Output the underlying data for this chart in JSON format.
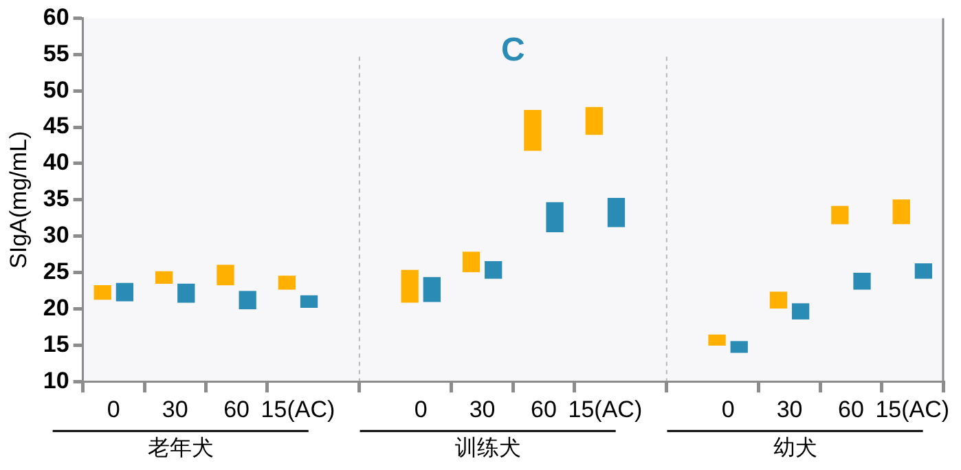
{
  "chart_data": {
    "type": "bar",
    "title": "C",
    "ylabel": "SIgA(mg/mL)",
    "categories": [
      "0",
      "30",
      "60",
      "15(AC)",
      "0",
      "30",
      "60",
      "15(AC)",
      "0",
      "30",
      "60",
      "15(AC)"
    ],
    "annotations": [
      "老年犬",
      "训练犬",
      "幼犬"
    ],
    "series": [
      {
        "color": "#ffb000",
        "base": [
          21.3,
          23.5,
          23.3,
          22.7,
          20.9,
          25.1,
          41.8,
          44.0,
          15.0,
          20.1,
          31.7,
          31.7
        ],
        "values": [
          1.9,
          1.6,
          2.7,
          1.8,
          4.4,
          2.7,
          5.5,
          3.7,
          1.4,
          2.2,
          2.4,
          3.3
        ]
      },
      {
        "color": "#2a8bb5",
        "base": [
          21.1,
          20.9,
          20.0,
          20.2,
          21.0,
          24.2,
          30.6,
          31.3,
          14.0,
          18.6,
          22.7,
          24.2
        ],
        "values": [
          2.4,
          2.5,
          2.4,
          1.6,
          3.3,
          2.3,
          4.0,
          3.9,
          1.5,
          2.1,
          2.2,
          2.0
        ]
      }
    ],
    "ylim": [
      10,
      60
    ],
    "yticks": [
      10,
      15,
      20,
      25,
      30,
      35,
      40,
      45,
      50,
      55,
      60
    ],
    "grid": false,
    "legend": false
  }
}
